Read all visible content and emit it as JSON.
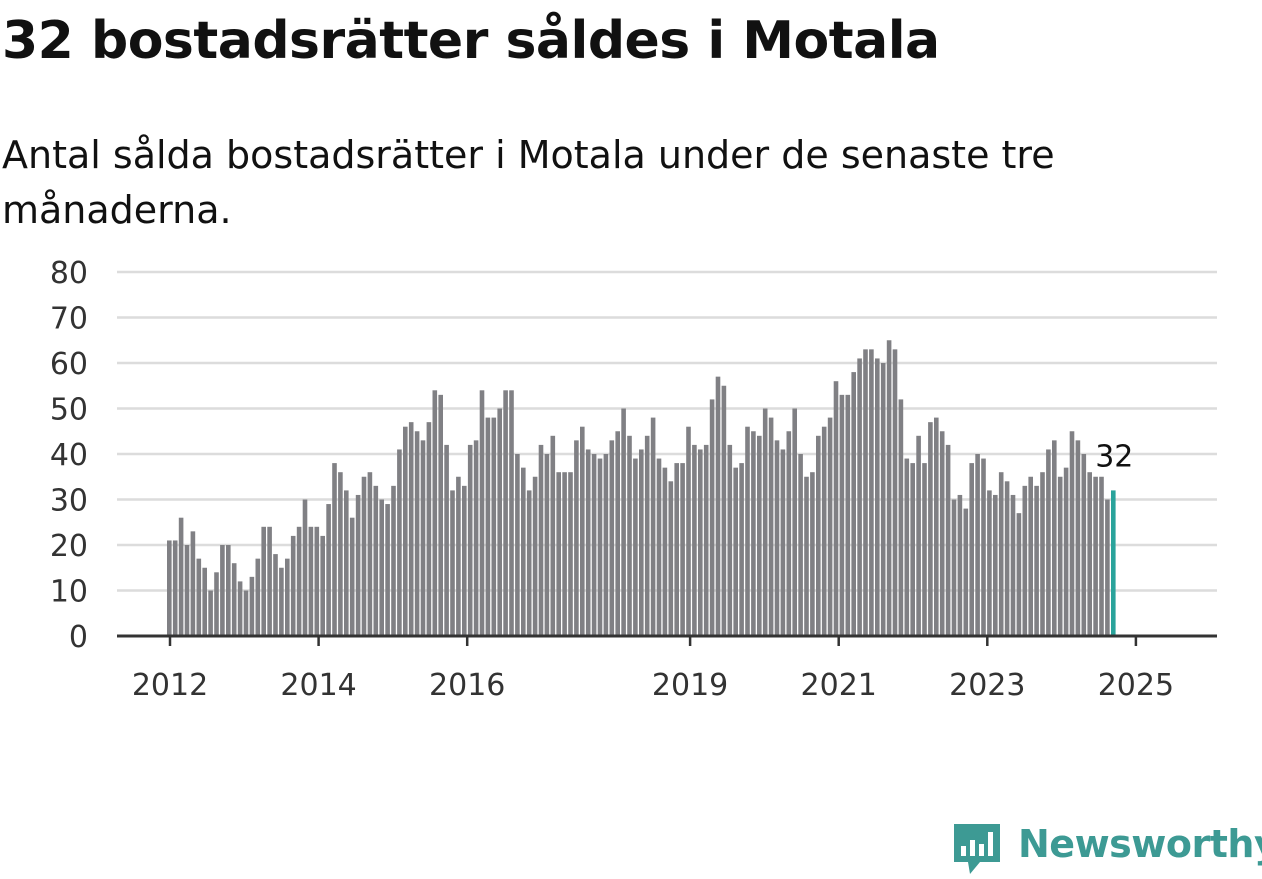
{
  "header": {
    "title": "32 bostadsrätter såldes i Motala",
    "subtitle": "Antal sålda bostadsrätter i Motala under de senaste tre månaderna."
  },
  "brand": {
    "name": "Newsworthy",
    "icon": "newsworthy-logo-icon",
    "color": "#3d9a94"
  },
  "colors": {
    "bar": "#808084",
    "highlight": "#2aa39b",
    "grid": "#dcdcdc",
    "axis": "#333333",
    "tick_text": "#333333"
  },
  "chart_data": {
    "type": "bar",
    "title": "32 bostadsrätter såldes i Motala",
    "subtitle": "Antal sålda bostadsrätter i Motala under de senaste tre månaderna.",
    "xlabel": "",
    "ylabel": "",
    "ylim": [
      0,
      80
    ],
    "yticks": [
      0,
      10,
      20,
      30,
      40,
      50,
      60,
      70,
      80
    ],
    "xticks": [
      "2012",
      "2014",
      "2016",
      "2019",
      "2021",
      "2023",
      "2025"
    ],
    "grid": true,
    "legend": "none",
    "first_month": "2012-01",
    "last_month": "2025-05",
    "highlight_label": "32",
    "values": [
      21,
      21,
      26,
      20,
      23,
      17,
      15,
      10,
      14,
      20,
      20,
      16,
      12,
      10,
      13,
      17,
      24,
      24,
      18,
      15,
      17,
      22,
      24,
      30,
      24,
      24,
      22,
      29,
      38,
      36,
      32,
      26,
      31,
      35,
      36,
      33,
      30,
      29,
      33,
      41,
      46,
      47,
      45,
      43,
      47,
      54,
      53,
      42,
      32,
      35,
      33,
      42,
      43,
      54,
      48,
      48,
      50,
      54,
      54,
      40,
      37,
      32,
      35,
      42,
      40,
      44,
      36,
      36,
      36,
      43,
      46,
      41,
      40,
      39,
      40,
      43,
      45,
      50,
      44,
      39,
      41,
      44,
      48,
      39,
      37,
      34,
      38,
      38,
      46,
      42,
      41,
      42,
      52,
      57,
      55,
      42,
      37,
      38,
      46,
      45,
      44,
      50,
      48,
      43,
      41,
      45,
      50,
      40,
      35,
      36,
      44,
      46,
      48,
      56,
      53,
      53,
      58,
      61,
      63,
      63,
      61,
      60,
      65,
      63,
      52,
      39,
      38,
      44,
      38,
      47,
      48,
      45,
      42,
      30,
      31,
      28,
      38,
      40,
      39,
      32,
      31,
      36,
      34,
      31,
      27,
      33,
      35,
      33,
      36,
      41,
      43,
      35,
      37,
      45,
      43,
      40,
      36,
      35,
      35,
      30,
      32
    ]
  }
}
